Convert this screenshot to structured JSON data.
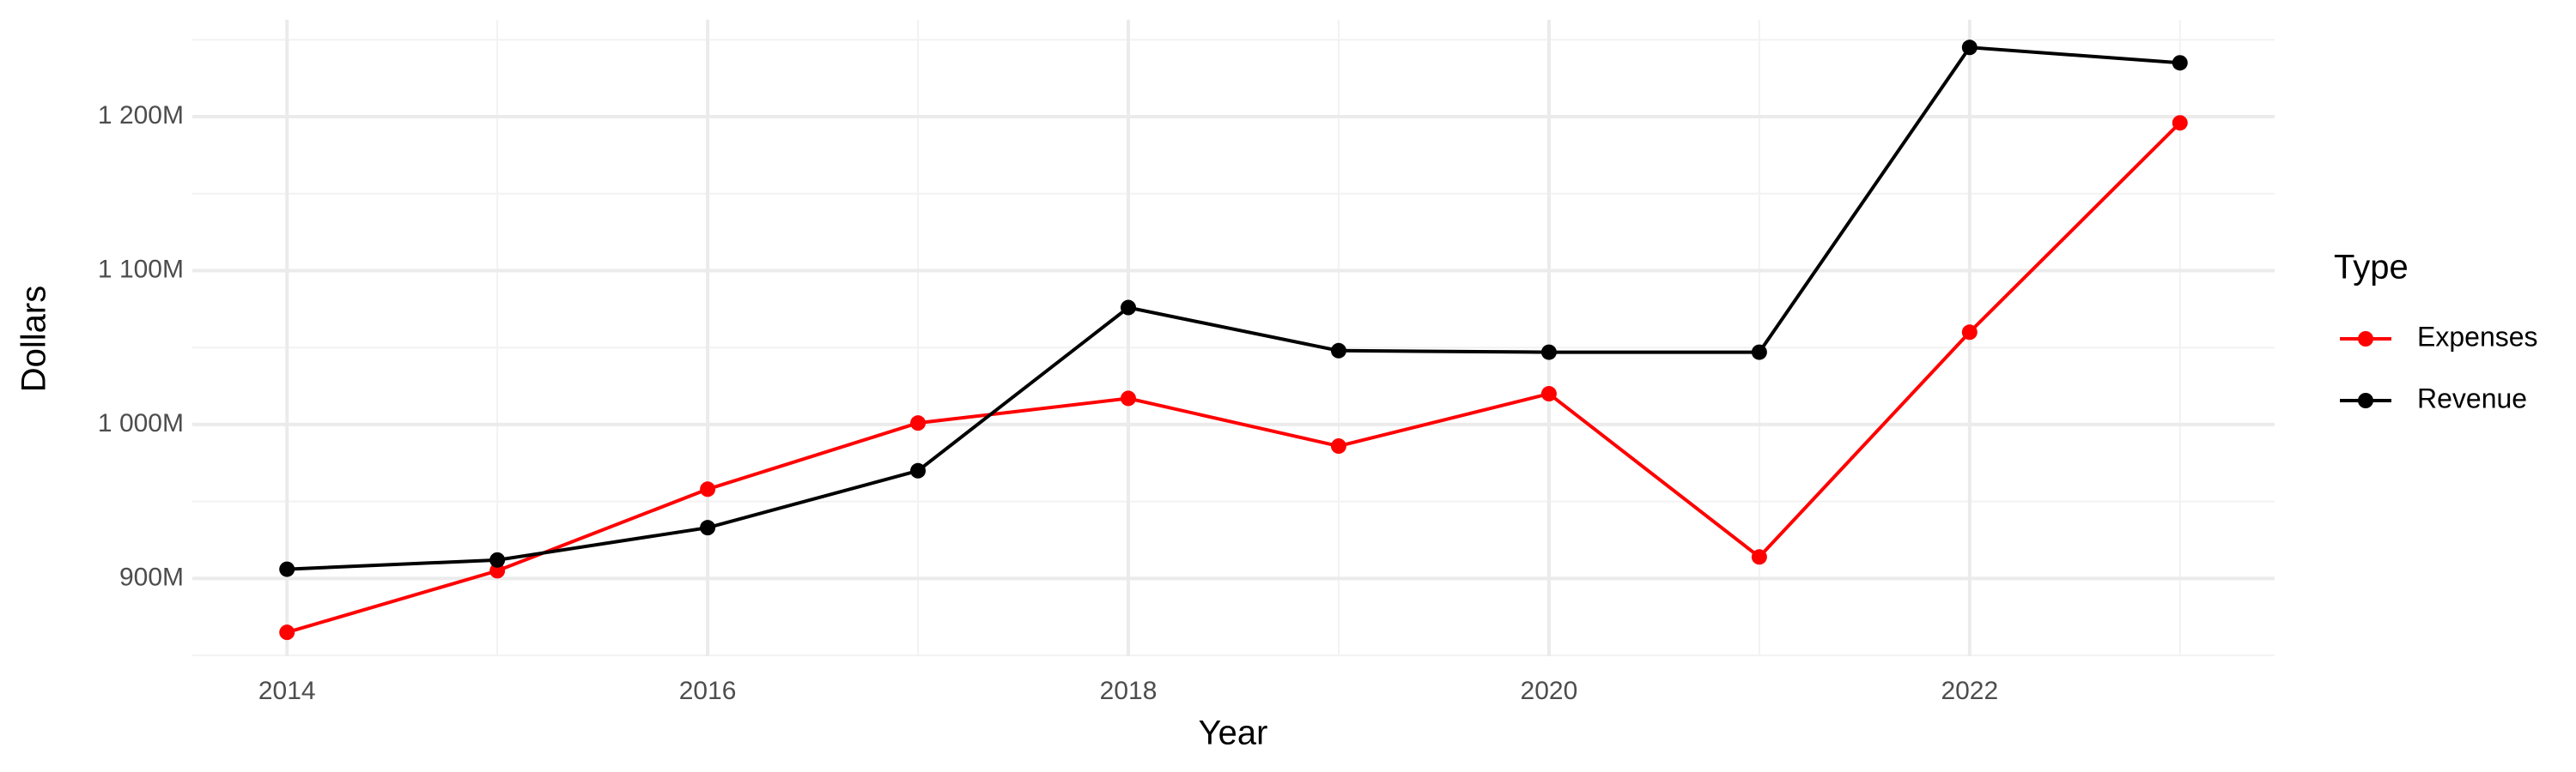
{
  "chart_data": {
    "type": "line",
    "x_label": "Year",
    "y_label": "Dollars",
    "legend_title": "Type",
    "x": [
      2014,
      2015,
      2016,
      2017,
      2018,
      2019,
      2020,
      2021,
      2022,
      2023
    ],
    "series": [
      {
        "name": "Expenses",
        "color": "#ff0000",
        "values": [
          865000000,
          905000000,
          958000000,
          1001000000,
          1017000000,
          986000000,
          1020000000,
          914000000,
          1060000000,
          1196000000
        ]
      },
      {
        "name": "Revenue",
        "color": "#000000",
        "values": [
          906000000,
          912000000,
          933000000,
          970000000,
          1076000000,
          1048000000,
          1047000000,
          1047000000,
          1245000000,
          1235000000
        ]
      }
    ],
    "xlim": [
      2013.55,
      2023.45
    ],
    "ylim": [
      849500000,
      1263000000
    ],
    "xticks": [
      2014,
      2016,
      2018,
      2020,
      2022
    ],
    "yticks": [
      {
        "value": 900000000,
        "label": "900M"
      },
      {
        "value": 1000000000,
        "label": "1 000M"
      },
      {
        "value": 1100000000,
        "label": "1 100M"
      },
      {
        "value": 1200000000,
        "label": "1 200M"
      }
    ],
    "x_minor_ticks": [
      2015,
      2017,
      2019,
      2021,
      2023
    ],
    "y_minor_ticks": [
      850000000,
      950000000,
      1050000000,
      1150000000,
      1250000000
    ],
    "grid": true,
    "legend_position": "right"
  }
}
